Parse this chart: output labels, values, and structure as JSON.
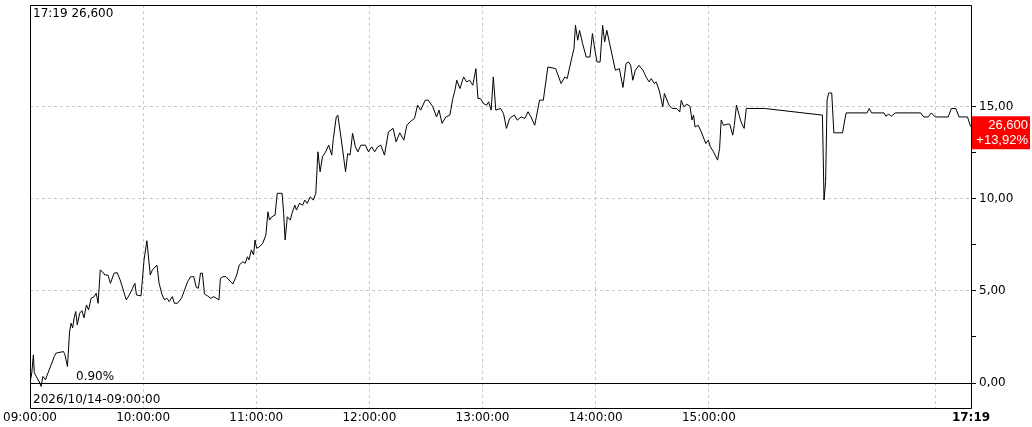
{
  "chart_data": {
    "type": "line",
    "title": "17:19 26,600",
    "x": [
      9,
      9.016,
      9.03,
      9.038,
      9.087,
      9.098,
      9.114,
      9.136,
      9.215,
      9.228,
      9.296,
      9.309,
      9.331,
      9.35,
      9.363,
      9.377,
      9.39,
      9.404,
      9.418,
      9.439,
      9.459,
      9.477,
      9.499,
      9.518,
      9.54,
      9.567,
      9.585,
      9.602,
      9.621,
      9.64,
      9.662,
      9.689,
      9.711,
      9.743,
      9.77,
      9.797,
      9.824,
      9.851,
      9.878,
      9.906,
      9.927,
      9.941,
      9.981,
      10.008,
      10.033,
      10.063,
      10.081,
      10.122,
      10.141,
      10.168,
      10.19,
      10.209,
      10.231,
      10.258,
      10.276,
      10.304,
      10.339,
      10.366,
      10.393,
      10.42,
      10.447,
      10.469,
      10.488,
      10.507,
      10.524,
      10.542,
      10.569,
      10.597,
      10.624,
      10.67,
      10.683,
      10.705,
      10.732,
      10.759,
      10.794,
      10.827,
      10.849,
      10.881,
      10.902,
      10.922,
      10.935,
      10.957,
      10.976,
      10.989,
      11.003,
      11.03,
      11.057,
      11.085,
      11.103,
      11.117,
      11.138,
      11.166,
      11.185,
      11.228,
      11.242,
      11.255,
      11.274,
      11.301,
      11.315,
      11.341,
      11.355,
      11.382,
      11.41,
      11.428,
      11.45,
      11.477,
      11.504,
      11.526,
      11.545,
      11.564,
      11.585,
      11.613,
      11.64,
      11.667,
      11.681,
      11.707,
      11.721,
      11.748,
      11.789,
      11.808,
      11.829,
      11.851,
      11.876,
      11.898,
      11.924,
      11.965,
      11.992,
      12.02,
      12.046,
      12.073,
      12.101,
      12.133,
      12.168,
      12.209,
      12.236,
      12.268,
      12.304,
      12.331,
      12.358,
      12.398,
      12.426,
      12.453,
      12.493,
      12.52,
      12.561,
      12.593,
      12.615,
      12.642,
      12.675,
      12.711,
      12.737,
      12.756,
      12.772,
      12.8,
      12.832,
      12.859,
      12.886,
      12.914,
      12.941,
      12.959,
      12.981,
      13.008,
      13.036,
      13.054,
      13.076,
      13.095,
      13.117,
      13.158,
      13.185,
      13.211,
      13.239,
      13.28,
      13.307,
      13.341,
      13.374,
      13.402,
      13.428,
      13.461,
      13.504,
      13.537,
      13.577,
      13.646,
      13.694,
      13.727,
      13.748,
      13.78,
      13.808,
      13.821,
      13.841,
      13.857,
      13.884,
      13.916,
      13.949,
      13.971,
      13.993,
      14.012,
      14.039,
      14.061,
      14.079,
      14.098,
      14.12,
      14.174,
      14.209,
      14.241,
      14.268,
      14.29,
      14.309,
      14.328,
      14.35,
      14.382,
      14.418,
      14.445,
      14.472,
      14.491,
      14.518,
      14.534,
      14.561,
      14.593,
      14.607,
      14.648,
      14.675,
      14.715,
      14.743,
      14.756,
      14.778,
      14.805,
      14.833,
      14.851,
      14.865,
      14.878,
      14.906,
      14.933,
      14.973,
      14.995,
      15.014,
      15.041,
      15.077,
      15.095,
      15.109,
      15.13,
      15.163,
      15.185,
      15.211,
      15.225,
      15.244,
      15.272,
      15.285,
      15.312,
      15.331,
      15.493,
      16.004,
      16.018,
      16.032,
      16.045,
      16.059,
      16.086,
      16.105,
      16.181,
      16.213,
      16.398,
      16.417,
      16.439,
      16.547,
      16.565,
      16.587,
      16.614,
      16.647,
      16.872,
      16.899,
      16.939,
      16.967,
      17,
      17.116,
      17.143,
      17.183,
      17.211,
      17.286,
      17.313
    ],
    "series": [
      {
        "color": "#000000",
        "values": [
          0,
          0.56,
          1.53,
          0.56,
          0,
          -0.18,
          0.36,
          0.18,
          1.44,
          1.62,
          1.71,
          1.53,
          0.9,
          2.79,
          3.25,
          2.99,
          3.54,
          3.88,
          3.16,
          3.79,
          3.93,
          3.54,
          4.24,
          3.97,
          4.6,
          4.69,
          4.87,
          4.33,
          6.13,
          6.04,
          5.86,
          5.86,
          5.41,
          5.96,
          5.99,
          5.59,
          5.05,
          4.51,
          4.78,
          5.14,
          5.41,
          4.78,
          4.73,
          6.68,
          7.72,
          5.86,
          6.13,
          6.4,
          5.41,
          4.78,
          4.51,
          4.6,
          4.42,
          4.69,
          4.33,
          4.33,
          4.6,
          5.05,
          5.5,
          5.77,
          5.77,
          5.2,
          5.14,
          5.96,
          5.96,
          4.83,
          4.73,
          4.6,
          4.69,
          4.51,
          5.68,
          5.77,
          5.77,
          5.59,
          5.38,
          5.86,
          6.4,
          6.58,
          6.5,
          6.85,
          6.68,
          7.22,
          6.95,
          7.76,
          7.31,
          7.4,
          7.58,
          8.03,
          9.29,
          8.84,
          9.02,
          9.11,
          10.29,
          10.29,
          9.2,
          7.76,
          9.02,
          8.84,
          9.2,
          9.65,
          9.38,
          9.75,
          9.65,
          9.92,
          9.75,
          10.1,
          9.92,
          10.29,
          12.54,
          11.46,
          12.27,
          12.54,
          12.9,
          12.36,
          13.26,
          14.43,
          14.53,
          13.35,
          11.46,
          12.45,
          12.36,
          13.54,
          12.81,
          12.54,
          12.9,
          12.9,
          12.54,
          12.81,
          12.54,
          12.81,
          12.9,
          12.36,
          13.62,
          13.81,
          13.08,
          13.57,
          13.17,
          13.98,
          14.16,
          14.35,
          15.07,
          14.8,
          15.34,
          15.34,
          14.98,
          14.43,
          14.8,
          14.08,
          14.43,
          14.53,
          15.43,
          15.88,
          16.42,
          15.97,
          16.6,
          16.33,
          16.42,
          16.15,
          17.05,
          15.43,
          15.43,
          15.16,
          15.07,
          15.25,
          14.8,
          16.6,
          14.8,
          14.89,
          14.62,
          13.81,
          14.35,
          14.53,
          14.26,
          14.43,
          14.35,
          14.71,
          14.43,
          13.98,
          15.34,
          15.34,
          17.14,
          17.05,
          16.24,
          16.6,
          16.51,
          17.41,
          18.14,
          19.4,
          18.59,
          19.13,
          18.41,
          17.68,
          17.68,
          18.95,
          18.05,
          17.41,
          17.41,
          19.4,
          18.5,
          19.13,
          18.5,
          16.96,
          17.05,
          16.03,
          17.33,
          17.41,
          17.23,
          16.42,
          16.96,
          17.23,
          16.96,
          16.6,
          16.33,
          16.51,
          16.24,
          16.33,
          15.88,
          14.98,
          15.7,
          15.07,
          14.89,
          14.89,
          14.7,
          15.34,
          14.98,
          15.12,
          15.01,
          14.26,
          14.53,
          13.89,
          13.98,
          13.62,
          12.99,
          13.17,
          12.81,
          12.54,
          12.09,
          12.72,
          14.26,
          13.98,
          14.04,
          14.04,
          13.44,
          13.98,
          15.07,
          14.43,
          14.16,
          13.81,
          14.89,
          14.89,
          14.53,
          9.93,
          10.92,
          15.34,
          15.73,
          15.73,
          13.57,
          13.57,
          14.65,
          14.65,
          14.89,
          14.65,
          14.65,
          14.47,
          14.58,
          14.47,
          14.65,
          14.65,
          14.43,
          14.43,
          14.65,
          14.43,
          14.43,
          14.89,
          14.89,
          14.43,
          14.43,
          13.92
        ]
      }
    ],
    "xlim": [
      9,
      17.317
    ],
    "xticks": [
      {
        "value": 9,
        "label": "09:00:00"
      },
      {
        "value": 10,
        "label": "10:00:00"
      },
      {
        "value": 11,
        "label": "11:00:00"
      },
      {
        "value": 12,
        "label": "12:00:00"
      },
      {
        "value": 13,
        "label": "13:00:00"
      },
      {
        "value": 14,
        "label": "14:00:00"
      },
      {
        "value": 15,
        "label": "15:00:00"
      },
      {
        "value": 17,
        "label": null
      },
      {
        "value": 17.317,
        "label": "17:19"
      }
    ],
    "ylim": [
      -1.35,
      20.5
    ],
    "yticks": [
      {
        "value": 0,
        "label": "0,00"
      },
      {
        "value": 2.5,
        "label": null
      },
      {
        "value": 5,
        "label": "5,00"
      },
      {
        "value": 7.5,
        "label": null
      },
      {
        "value": 10,
        "label": "10,00"
      },
      {
        "value": 12.5,
        "label": null
      },
      {
        "value": 15,
        "label": "15,00"
      }
    ],
    "grid": true,
    "marker": "none",
    "line_style": "solid",
    "ref_lines": [
      {
        "axis": "y",
        "value": 0,
        "color": "#000000"
      }
    ],
    "annotations": [
      "0.90%",
      "2026/10/14-09:00:00",
      "26,600",
      "+13,92%"
    ]
  }
}
